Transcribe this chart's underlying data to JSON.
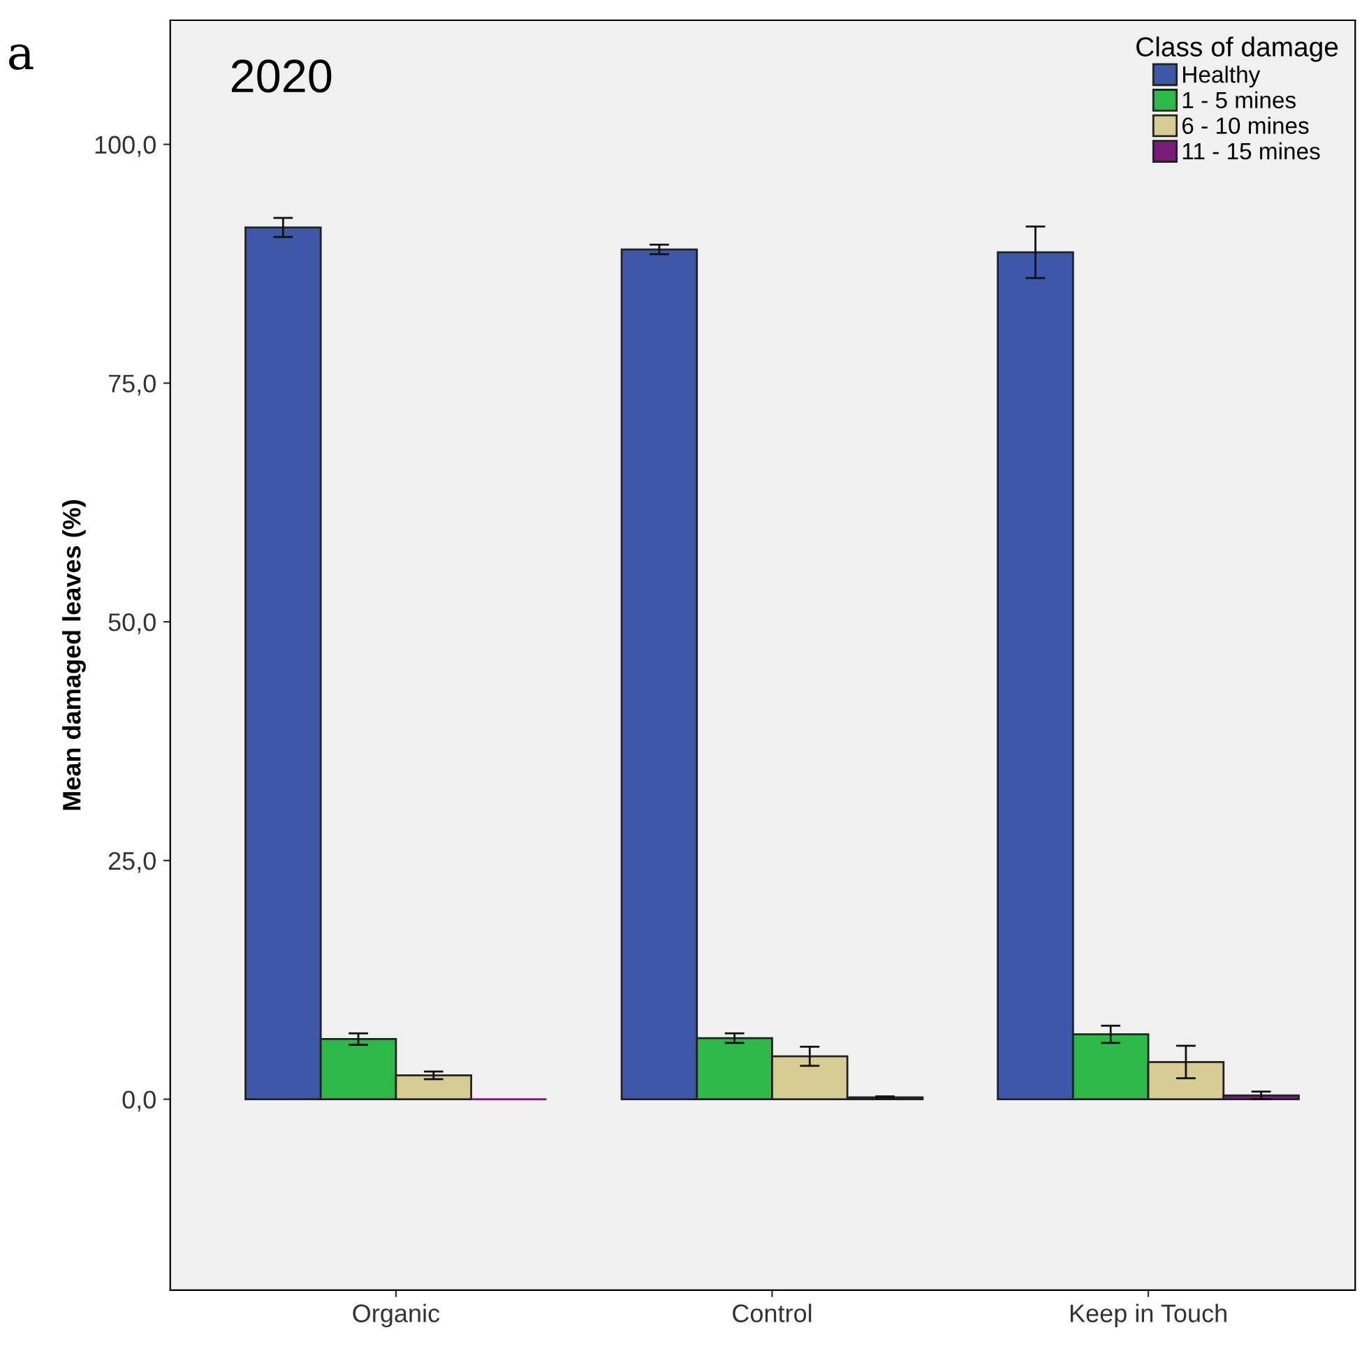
{
  "chart_data": {
    "type": "bar",
    "title": "2020",
    "ylabel": "Mean damaged leaves (%)",
    "legend_title": "Class of damage",
    "annotations": [
      "a"
    ],
    "categories": [
      "Organic",
      "Control",
      "Keep in Touch"
    ],
    "series": [
      {
        "name": "Healthy",
        "color": "#3e57a9",
        "values": [
          91.3,
          89.0,
          88.7
        ],
        "errors": [
          1.0,
          0.5,
          2.7
        ]
      },
      {
        "name": "1 - 5 mines",
        "color": "#2db84a",
        "values": [
          6.3,
          6.4,
          6.8
        ],
        "errors": [
          0.6,
          0.5,
          0.9
        ]
      },
      {
        "name": "6 - 10 mines",
        "color": "#d6cc94",
        "values": [
          2.5,
          4.5,
          3.9
        ],
        "errors": [
          0.4,
          1.0,
          1.7
        ]
      },
      {
        "name": "11 - 15 mines",
        "color": "#7a1a7a",
        "values": [
          0,
          0.2,
          0.4
        ],
        "errors": [
          null,
          0.1,
          0.4
        ]
      }
    ],
    "ylim": [
      -20,
      113
    ],
    "yticks": [
      {
        "value": 0,
        "label": "0,0"
      },
      {
        "value": 25,
        "label": "25,0"
      },
      {
        "value": 50,
        "label": "50,0"
      },
      {
        "value": 75,
        "label": "75,0"
      },
      {
        "value": 100,
        "label": "100,0"
      }
    ],
    "grid": false,
    "legend": "top right"
  }
}
